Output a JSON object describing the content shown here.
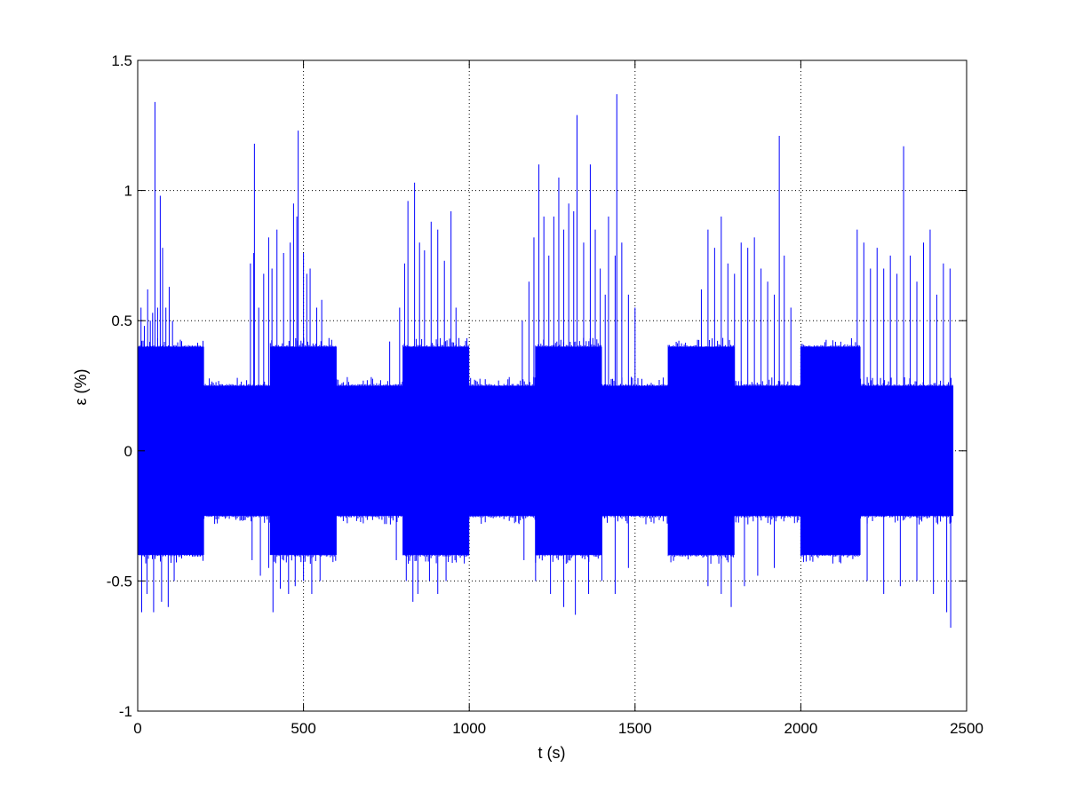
{
  "chart_data": {
    "type": "line",
    "title": "",
    "xlabel": "t (s)",
    "ylabel": "ε (%)",
    "xlim": [
      0,
      2500
    ],
    "ylim": [
      -1,
      1.5
    ],
    "xticks": [
      0,
      500,
      1000,
      1500,
      2000,
      2500
    ],
    "yticks": [
      -1,
      -0.5,
      0,
      0.5,
      1,
      1.5
    ],
    "xtick_labels": [
      "0",
      "500",
      "1000",
      "1500",
      "2000",
      "2500"
    ],
    "ytick_labels": [
      "-1",
      "-0.5",
      "0",
      "0.5",
      "1",
      "1.5"
    ],
    "grid": true,
    "legend": "none",
    "series": [
      {
        "color": "#0000ff",
        "t_range": [
          0,
          2460
        ],
        "segments": [
          {
            "t_start": 0,
            "t_end": 200,
            "upper": 0.4,
            "lower": -0.4
          },
          {
            "t_start": 200,
            "t_end": 330,
            "upper": 0.25,
            "lower": -0.25
          },
          {
            "t_start": 330,
            "t_end": 400,
            "upper": 0.25,
            "lower": -0.25
          },
          {
            "t_start": 400,
            "t_end": 600,
            "upper": 0.4,
            "lower": -0.4
          },
          {
            "t_start": 600,
            "t_end": 750,
            "upper": 0.25,
            "lower": -0.25
          },
          {
            "t_start": 750,
            "t_end": 800,
            "upper": 0.25,
            "lower": -0.25
          },
          {
            "t_start": 800,
            "t_end": 1000,
            "upper": 0.4,
            "lower": -0.4
          },
          {
            "t_start": 1000,
            "t_end": 1150,
            "upper": 0.25,
            "lower": -0.25
          },
          {
            "t_start": 1150,
            "t_end": 1200,
            "upper": 0.25,
            "lower": -0.25
          },
          {
            "t_start": 1200,
            "t_end": 1400,
            "upper": 0.4,
            "lower": -0.4
          },
          {
            "t_start": 1400,
            "t_end": 1600,
            "upper": 0.25,
            "lower": -0.25
          },
          {
            "t_start": 1600,
            "t_end": 1800,
            "upper": 0.4,
            "lower": -0.4
          },
          {
            "t_start": 1800,
            "t_end": 2000,
            "upper": 0.25,
            "lower": -0.25
          },
          {
            "t_start": 2000,
            "t_end": 2180,
            "upper": 0.4,
            "lower": -0.4
          },
          {
            "t_start": 2180,
            "t_end": 2460,
            "upper": 0.25,
            "lower": -0.25
          }
        ],
        "spikes": [
          {
            "t": 10,
            "v": 0.55
          },
          {
            "t": 20,
            "v": 0.48
          },
          {
            "t": 30,
            "v": 0.62
          },
          {
            "t": 38,
            "v": 0.5
          },
          {
            "t": 45,
            "v": 0.53
          },
          {
            "t": 52,
            "v": 1.34
          },
          {
            "t": 60,
            "v": 0.55
          },
          {
            "t": 68,
            "v": 0.98
          },
          {
            "t": 75,
            "v": 0.78
          },
          {
            "t": 85,
            "v": 0.55
          },
          {
            "t": 95,
            "v": 0.63
          },
          {
            "t": 105,
            "v": 0.5
          },
          {
            "t": 12,
            "v": -0.62
          },
          {
            "t": 28,
            "v": -0.55
          },
          {
            "t": 48,
            "v": -0.62
          },
          {
            "t": 72,
            "v": -0.58
          },
          {
            "t": 92,
            "v": -0.6
          },
          {
            "t": 110,
            "v": -0.5
          },
          {
            "t": 340,
            "v": 0.72
          },
          {
            "t": 350,
            "v": 0.76
          },
          {
            "t": 352,
            "v": 1.18
          },
          {
            "t": 365,
            "v": 0.55
          },
          {
            "t": 380,
            "v": 0.68
          },
          {
            "t": 395,
            "v": 0.82
          },
          {
            "t": 405,
            "v": 0.7
          },
          {
            "t": 420,
            "v": 0.85
          },
          {
            "t": 440,
            "v": 0.76
          },
          {
            "t": 460,
            "v": 0.8
          },
          {
            "t": 470,
            "v": 0.95
          },
          {
            "t": 480,
            "v": 0.9
          },
          {
            "t": 484,
            "v": 1.23
          },
          {
            "t": 500,
            "v": 0.76
          },
          {
            "t": 510,
            "v": 0.68
          },
          {
            "t": 520,
            "v": 0.7
          },
          {
            "t": 540,
            "v": 0.55
          },
          {
            "t": 555,
            "v": 0.58
          },
          {
            "t": 345,
            "v": -0.42
          },
          {
            "t": 370,
            "v": -0.48
          },
          {
            "t": 395,
            "v": -0.45
          },
          {
            "t": 408,
            "v": -0.62
          },
          {
            "t": 430,
            "v": -0.53
          },
          {
            "t": 455,
            "v": -0.55
          },
          {
            "t": 475,
            "v": -0.52
          },
          {
            "t": 500,
            "v": -0.5
          },
          {
            "t": 525,
            "v": -0.55
          },
          {
            "t": 550,
            "v": -0.5
          },
          {
            "t": 760,
            "v": 0.42
          },
          {
            "t": 790,
            "v": 0.55
          },
          {
            "t": 805,
            "v": 0.72
          },
          {
            "t": 815,
            "v": 0.96
          },
          {
            "t": 835,
            "v": 1.03
          },
          {
            "t": 850,
            "v": 0.8
          },
          {
            "t": 865,
            "v": 0.77
          },
          {
            "t": 885,
            "v": 0.88
          },
          {
            "t": 905,
            "v": 0.85
          },
          {
            "t": 925,
            "v": 0.73
          },
          {
            "t": 945,
            "v": 0.92
          },
          {
            "t": 960,
            "v": 0.55
          },
          {
            "t": 780,
            "v": -0.42
          },
          {
            "t": 810,
            "v": -0.5
          },
          {
            "t": 830,
            "v": -0.58
          },
          {
            "t": 845,
            "v": -0.55
          },
          {
            "t": 880,
            "v": -0.5
          },
          {
            "t": 905,
            "v": -0.55
          },
          {
            "t": 930,
            "v": -0.5
          },
          {
            "t": 1160,
            "v": 0.5
          },
          {
            "t": 1180,
            "v": 0.65
          },
          {
            "t": 1195,
            "v": 0.82
          },
          {
            "t": 1210,
            "v": 1.1
          },
          {
            "t": 1225,
            "v": 0.9
          },
          {
            "t": 1240,
            "v": 0.75
          },
          {
            "t": 1255,
            "v": 0.9
          },
          {
            "t": 1270,
            "v": 1.05
          },
          {
            "t": 1285,
            "v": 0.85
          },
          {
            "t": 1300,
            "v": 0.95
          },
          {
            "t": 1315,
            "v": 0.92
          },
          {
            "t": 1325,
            "v": 1.29
          },
          {
            "t": 1345,
            "v": 0.8
          },
          {
            "t": 1365,
            "v": 1.1
          },
          {
            "t": 1380,
            "v": 0.85
          },
          {
            "t": 1395,
            "v": 0.7
          },
          {
            "t": 1410,
            "v": 0.6
          },
          {
            "t": 1420,
            "v": 0.9
          },
          {
            "t": 1440,
            "v": 0.75
          },
          {
            "t": 1445,
            "v": 1.37
          },
          {
            "t": 1460,
            "v": 0.8
          },
          {
            "t": 1480,
            "v": 0.6
          },
          {
            "t": 1500,
            "v": 0.55
          },
          {
            "t": 1165,
            "v": -0.42
          },
          {
            "t": 1200,
            "v": -0.5
          },
          {
            "t": 1245,
            "v": -0.55
          },
          {
            "t": 1285,
            "v": -0.6
          },
          {
            "t": 1320,
            "v": -0.63
          },
          {
            "t": 1360,
            "v": -0.55
          },
          {
            "t": 1400,
            "v": -0.5
          },
          {
            "t": 1440,
            "v": -0.55
          },
          {
            "t": 1480,
            "v": -0.45
          },
          {
            "t": 1700,
            "v": 0.62
          },
          {
            "t": 1720,
            "v": 0.85
          },
          {
            "t": 1740,
            "v": 0.78
          },
          {
            "t": 1760,
            "v": 0.9
          },
          {
            "t": 1780,
            "v": 0.72
          },
          {
            "t": 1800,
            "v": 0.68
          },
          {
            "t": 1820,
            "v": 0.8
          },
          {
            "t": 1840,
            "v": 0.78
          },
          {
            "t": 1860,
            "v": 0.82
          },
          {
            "t": 1880,
            "v": 0.7
          },
          {
            "t": 1900,
            "v": 0.65
          },
          {
            "t": 1920,
            "v": 0.6
          },
          {
            "t": 1935,
            "v": 1.21
          },
          {
            "t": 1950,
            "v": 0.75
          },
          {
            "t": 1970,
            "v": 0.55
          },
          {
            "t": 1720,
            "v": -0.52
          },
          {
            "t": 1760,
            "v": -0.55
          },
          {
            "t": 1790,
            "v": -0.6
          },
          {
            "t": 1830,
            "v": -0.52
          },
          {
            "t": 1870,
            "v": -0.48
          },
          {
            "t": 1920,
            "v": -0.45
          },
          {
            "t": 2170,
            "v": 0.85
          },
          {
            "t": 2190,
            "v": 0.8
          },
          {
            "t": 2210,
            "v": 0.7
          },
          {
            "t": 2230,
            "v": 0.78
          },
          {
            "t": 2250,
            "v": 0.7
          },
          {
            "t": 2270,
            "v": 0.75
          },
          {
            "t": 2290,
            "v": 0.68
          },
          {
            "t": 2310,
            "v": 1.17
          },
          {
            "t": 2330,
            "v": 0.75
          },
          {
            "t": 2350,
            "v": 0.65
          },
          {
            "t": 2370,
            "v": 0.8
          },
          {
            "t": 2390,
            "v": 0.85
          },
          {
            "t": 2410,
            "v": 0.6
          },
          {
            "t": 2430,
            "v": 0.72
          },
          {
            "t": 2450,
            "v": 0.7
          },
          {
            "t": 2200,
            "v": -0.5
          },
          {
            "t": 2250,
            "v": -0.55
          },
          {
            "t": 2300,
            "v": -0.52
          },
          {
            "t": 2350,
            "v": -0.5
          },
          {
            "t": 2400,
            "v": -0.55
          },
          {
            "t": 2440,
            "v": -0.62
          },
          {
            "t": 2452,
            "v": -0.68
          }
        ]
      }
    ]
  }
}
